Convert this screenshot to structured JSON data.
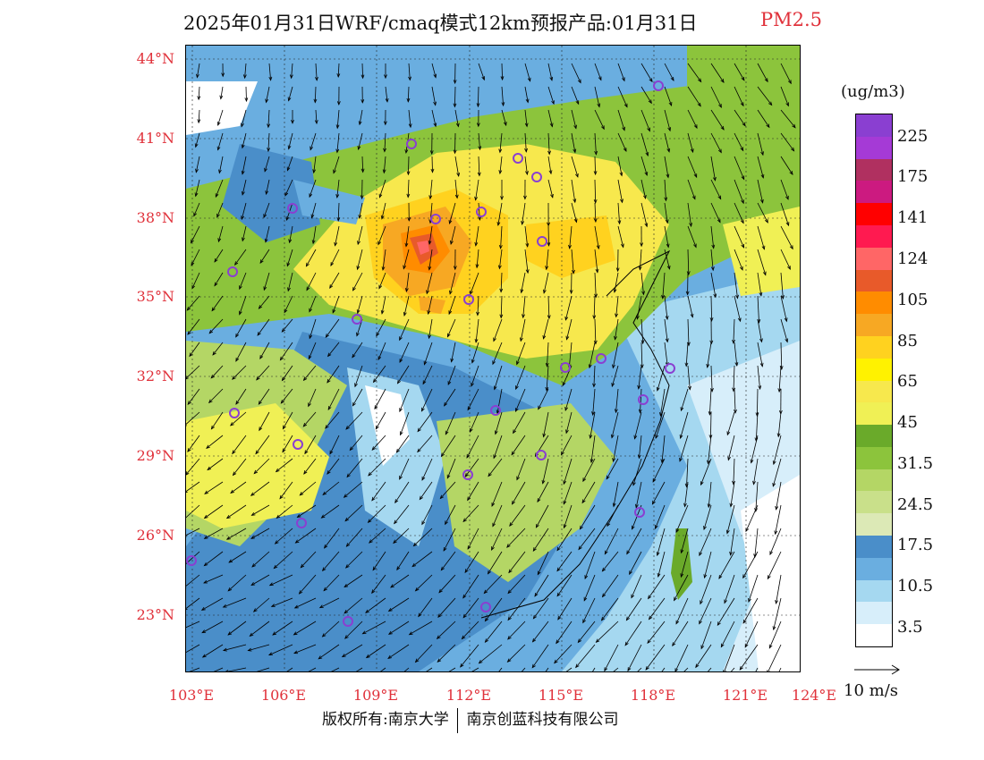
{
  "title": {
    "main": "2025年01月31日WRF/cmaq模式12km预报产品:01月31日",
    "pollutant": "PM2.5"
  },
  "lat_labels": [
    "44°N",
    "41°N",
    "38°N",
    "35°N",
    "32°N",
    "29°N",
    "26°N",
    "23°N"
  ],
  "lon_labels": [
    "103°E",
    "106°E",
    "109°E",
    "112°E",
    "115°E",
    "118°E",
    "121°E",
    "124°E"
  ],
  "legend": {
    "unit": "(ug/m3)",
    "labels": [
      "225",
      "175",
      "141",
      "124",
      "105",
      "85",
      "65",
      "45",
      "31.5",
      "24.5",
      "17.5",
      "10.5",
      "3.5"
    ],
    "colors": [
      "#8a3fd1",
      "#a53ad6",
      "#b03060",
      "#cc1a80",
      "#ff0000",
      "#ff1a50",
      "#ff6666",
      "#e85a2a",
      "#ff8c00",
      "#f7a823",
      "#ffd21f",
      "#fff200",
      "#f7e84d",
      "#f0f055",
      "#6aaa2a",
      "#8cc43c",
      "#b4d665",
      "#c9e08a",
      "#dce9b6",
      "#4a8ec9",
      "#6aaee0",
      "#a5d8f0",
      "#d7eefa",
      "#ffffff"
    ],
    "colors_note_order": "top-to-bottom"
  },
  "wind_key": {
    "label": "10 m/s"
  },
  "footer": {
    "left": "版权所有:南京大学",
    "right": "南京创蓝科技有限公司"
  }
}
